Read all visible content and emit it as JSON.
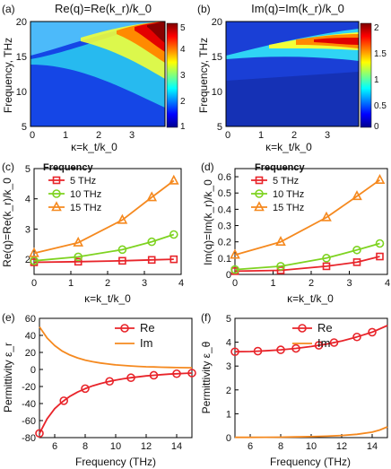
{
  "chart_data": [
    {
      "id": "a",
      "type": "heatmap",
      "panel_label": "(a)",
      "title": "Re(q)=Re(k_r)/k_0",
      "xlabel": "κ=k_t/k_0",
      "ylabel": "Frequency, THz",
      "xlim": [
        0,
        3.9
      ],
      "ylim": [
        5,
        20
      ],
      "xticks": [
        "0",
        "1",
        "2",
        "3"
      ],
      "yticks": [
        "5",
        "10",
        "15",
        "20"
      ],
      "colorbar": {
        "min": 1,
        "max": 5,
        "ticks": [
          "1",
          "2",
          "3",
          "4",
          "5"
        ]
      }
    },
    {
      "id": "b",
      "type": "heatmap",
      "panel_label": "(b)",
      "title": "Im(q)=Im(k_r)/k_0",
      "xlabel": "κ=k_t/k_0",
      "ylabel": "Frequency, THz",
      "xlim": [
        0,
        3.9
      ],
      "ylim": [
        5,
        20
      ],
      "xticks": [
        "0",
        "1",
        "2",
        "3"
      ],
      "yticks": [
        "5",
        "10",
        "15",
        "20"
      ],
      "colorbar": {
        "min": 0,
        "max": 2,
        "ticks": [
          "0",
          "0.5",
          "1",
          "1.5",
          "2"
        ]
      }
    },
    {
      "id": "c",
      "type": "line",
      "panel_label": "(c)",
      "xlabel": "κ=k_t/k_0",
      "ylabel": "Re(q)=Re(k_r)/k_0",
      "xlim": [
        0,
        4
      ],
      "ylim": [
        1.5,
        5
      ],
      "xticks": [
        "0",
        "1",
        "2",
        "3",
        "4"
      ],
      "yticks": [
        "2",
        "3",
        "4",
        "5"
      ],
      "legend_title": "Frequency",
      "legend_position": "top-left",
      "series": [
        {
          "name": "5 THz",
          "color": "#e8242a",
          "marker": "square",
          "x": [
            0,
            1.2,
            2.4,
            3.2,
            3.8
          ],
          "y": [
            1.9,
            1.92,
            1.95,
            1.98,
            2.0
          ]
        },
        {
          "name": "10 THz",
          "color": "#7ed321",
          "marker": "circle",
          "x": [
            0,
            1.2,
            2.4,
            3.2,
            3.8
          ],
          "y": [
            1.95,
            2.08,
            2.32,
            2.58,
            2.82
          ]
        },
        {
          "name": "15 THz",
          "color": "#f5891f",
          "marker": "triangle",
          "x": [
            0,
            1.2,
            2.4,
            3.2,
            3.8
          ],
          "y": [
            2.2,
            2.55,
            3.3,
            4.05,
            4.6
          ]
        }
      ]
    },
    {
      "id": "d",
      "type": "line",
      "panel_label": "(d)",
      "xlabel": "κ=k_t/k_0",
      "ylabel": "Im(q)=Im(k_r)/k_0",
      "xlim": [
        0,
        4
      ],
      "ylim": [
        0,
        0.65
      ],
      "xticks": [
        "0",
        "1",
        "2",
        "3",
        "4"
      ],
      "yticks": [
        "0",
        "0.1",
        "0.2",
        "0.3",
        "0.4",
        "0.5",
        "0.6"
      ],
      "legend_title": "Frequency",
      "legend_position": "top-left",
      "series": [
        {
          "name": "5 THz",
          "color": "#e8242a",
          "marker": "square",
          "x": [
            0,
            1.2,
            2.4,
            3.2,
            3.8
          ],
          "y": [
            0.02,
            0.025,
            0.05,
            0.075,
            0.11
          ]
        },
        {
          "name": "10 THz",
          "color": "#7ed321",
          "marker": "circle",
          "x": [
            0,
            1.2,
            2.4,
            3.2,
            3.8
          ],
          "y": [
            0.03,
            0.05,
            0.1,
            0.15,
            0.19
          ]
        },
        {
          "name": "15 THz",
          "color": "#f5891f",
          "marker": "triangle",
          "x": [
            0,
            1.2,
            2.4,
            3.2,
            3.8
          ],
          "y": [
            0.12,
            0.2,
            0.35,
            0.48,
            0.58
          ]
        }
      ]
    },
    {
      "id": "e",
      "type": "line",
      "panel_label": "(e)",
      "xlabel": "Frequency (THz)",
      "ylabel": "Permittivity ε_r",
      "xlim": [
        5,
        15
      ],
      "ylim": [
        -80,
        60
      ],
      "xticks": [
        "6",
        "8",
        "10",
        "12",
        "14"
      ],
      "yticks": [
        "-80",
        "-60",
        "-40",
        "-20",
        "0",
        "20",
        "40",
        "60"
      ],
      "legend_position": "top-right",
      "series": [
        {
          "name": "Re",
          "color": "#e8242a",
          "marker": "circle",
          "x": [
            5,
            5.5,
            6,
            6.5,
            7,
            7.5,
            8,
            8.5,
            9,
            9.5,
            10,
            10.5,
            11,
            11.5,
            12,
            12.5,
            13,
            13.5,
            14,
            14.5,
            15
          ],
          "y": [
            -75,
            -58,
            -46,
            -38,
            -31.5,
            -26.5,
            -22.5,
            -19.2,
            -16.5,
            -14.3,
            -12.5,
            -11,
            -9.7,
            -8.6,
            -7.6,
            -6.8,
            -6.1,
            -5.5,
            -5,
            -4.6,
            -4.2
          ],
          "marker_x": [
            5,
            6.6,
            8,
            9.6,
            11,
            12.5,
            14,
            15
          ]
        },
        {
          "name": "Im",
          "color": "#f5891f",
          "marker": "none",
          "x": [
            5,
            5.5,
            6,
            6.5,
            7,
            7.5,
            8,
            8.5,
            9,
            9.5,
            10,
            10.5,
            11,
            11.5,
            12,
            12.5,
            13,
            13.5,
            14,
            14.5,
            15
          ],
          "y": [
            50,
            37,
            28,
            21.5,
            17,
            13.6,
            11,
            9.1,
            7.6,
            6.4,
            5.4,
            4.7,
            4.1,
            3.6,
            3.2,
            2.9,
            2.6,
            2.4,
            2.2,
            2.1,
            2.0
          ]
        }
      ]
    },
    {
      "id": "f",
      "type": "line",
      "panel_label": "(f)",
      "xlabel": "Frequency (THz)",
      "ylabel": "Permittivity ε_θ",
      "xlim": [
        5,
        15
      ],
      "ylim": [
        0,
        5
      ],
      "xticks": [
        "6",
        "8",
        "10",
        "12",
        "14"
      ],
      "yticks": [
        "0",
        "1",
        "2",
        "3",
        "4",
        "5"
      ],
      "legend_position": "top-right",
      "series": [
        {
          "name": "Re",
          "color": "#e8242a",
          "marker": "circle",
          "x": [
            5,
            6,
            7,
            8,
            9,
            10,
            11,
            12,
            13,
            14,
            15
          ],
          "y": [
            3.6,
            3.61,
            3.64,
            3.68,
            3.74,
            3.82,
            3.92,
            4.05,
            4.22,
            4.42,
            4.7
          ],
          "marker_x": [
            5,
            6.5,
            8,
            9,
            10.5,
            11.5,
            13,
            14
          ]
        },
        {
          "name": "Im",
          "color": "#f5891f",
          "marker": "none",
          "x": [
            5,
            6,
            7,
            8,
            9,
            10,
            11,
            12,
            13,
            14,
            14.5,
            15
          ],
          "y": [
            0.01,
            0.01,
            0.015,
            0.02,
            0.03,
            0.04,
            0.06,
            0.09,
            0.14,
            0.23,
            0.32,
            0.45
          ]
        }
      ]
    }
  ]
}
